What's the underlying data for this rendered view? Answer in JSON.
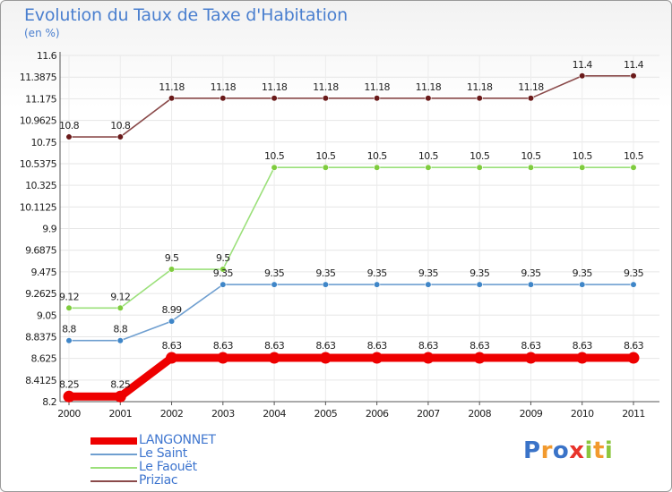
{
  "title": "Evolution du Taux de Taxe d'Habitation",
  "subtitle": "(en %)",
  "brand": {
    "text": "Proxiti",
    "letters": [
      {
        "char": "P",
        "color": "#3a73c8"
      },
      {
        "char": "r",
        "color": "#f29a2e"
      },
      {
        "char": "o",
        "color": "#3a73c8"
      },
      {
        "char": "x",
        "color": "#e8332b"
      },
      {
        "char": "i",
        "color": "#8cc63e"
      },
      {
        "char": "t",
        "color": "#f29a2e"
      },
      {
        "char": "i",
        "color": "#8cc63e"
      }
    ]
  },
  "chart_data": {
    "type": "line",
    "title": "Evolution du Taux de Taxe d'Habitation",
    "ylabel": "(en %)",
    "xlabel": "",
    "categories": [
      "2000",
      "2001",
      "2002",
      "2003",
      "2004",
      "2005",
      "2006",
      "2007",
      "2008",
      "2009",
      "2010",
      "2011"
    ],
    "ylim": [
      8.2,
      11.6
    ],
    "yticks": [
      "8.2",
      "8.4125",
      "8.625",
      "8.8375",
      "9.05",
      "9.2625",
      "9.475",
      "9.6875",
      "9.9",
      "10.1125",
      "10.325",
      "10.5375",
      "10.75",
      "10.9625",
      "11.175",
      "11.3875",
      "11.6"
    ],
    "grid": true,
    "legend_position": "bottom-left",
    "series": [
      {
        "name": "LANGONNET",
        "color": "#ee0000",
        "dot": "#ee0000",
        "emphasis": true,
        "values": [
          8.25,
          8.25,
          8.63,
          8.63,
          8.63,
          8.63,
          8.63,
          8.63,
          8.63,
          8.63,
          8.63,
          8.63
        ],
        "labels": [
          "8.25",
          "8.25",
          "8.63",
          "8.63",
          "8.63",
          "8.63",
          "8.63",
          "8.63",
          "8.63",
          "8.63",
          "8.63",
          "8.63"
        ]
      },
      {
        "name": "Le Saint",
        "color": "#6f9fd0",
        "dot": "#3f86c8",
        "emphasis": false,
        "values": [
          8.8,
          8.8,
          8.99,
          9.35,
          9.35,
          9.35,
          9.35,
          9.35,
          9.35,
          9.35,
          9.35,
          9.35
        ],
        "labels": [
          "8.8",
          "8.8",
          "8.99",
          "9.35",
          "9.35",
          "9.35",
          "9.35",
          "9.35",
          "9.35",
          "9.35",
          "9.35",
          "9.35"
        ]
      },
      {
        "name": "Le Faouët",
        "color": "#9be07a",
        "dot": "#7fcc3e",
        "emphasis": false,
        "values": [
          9.12,
          9.12,
          9.5,
          9.5,
          10.5,
          10.5,
          10.5,
          10.5,
          10.5,
          10.5,
          10.5,
          10.5
        ],
        "labels": [
          "9.12",
          "9.12",
          "9.5",
          "9.5",
          "10.5",
          "10.5",
          "10.5",
          "10.5",
          "10.5",
          "10.5",
          "10.5",
          "10.5"
        ]
      },
      {
        "name": "Priziac",
        "color": "#8a4a4a",
        "dot": "#6a1a1a",
        "emphasis": false,
        "values": [
          10.8,
          10.8,
          11.18,
          11.18,
          11.18,
          11.18,
          11.18,
          11.18,
          11.18,
          11.18,
          11.4,
          11.4
        ],
        "labels": [
          "10.8",
          "10.8",
          "11.18",
          "11.18",
          "11.18",
          "11.18",
          "11.18",
          "11.18",
          "11.18",
          "11.18",
          "11.4",
          "11.4"
        ]
      }
    ]
  }
}
